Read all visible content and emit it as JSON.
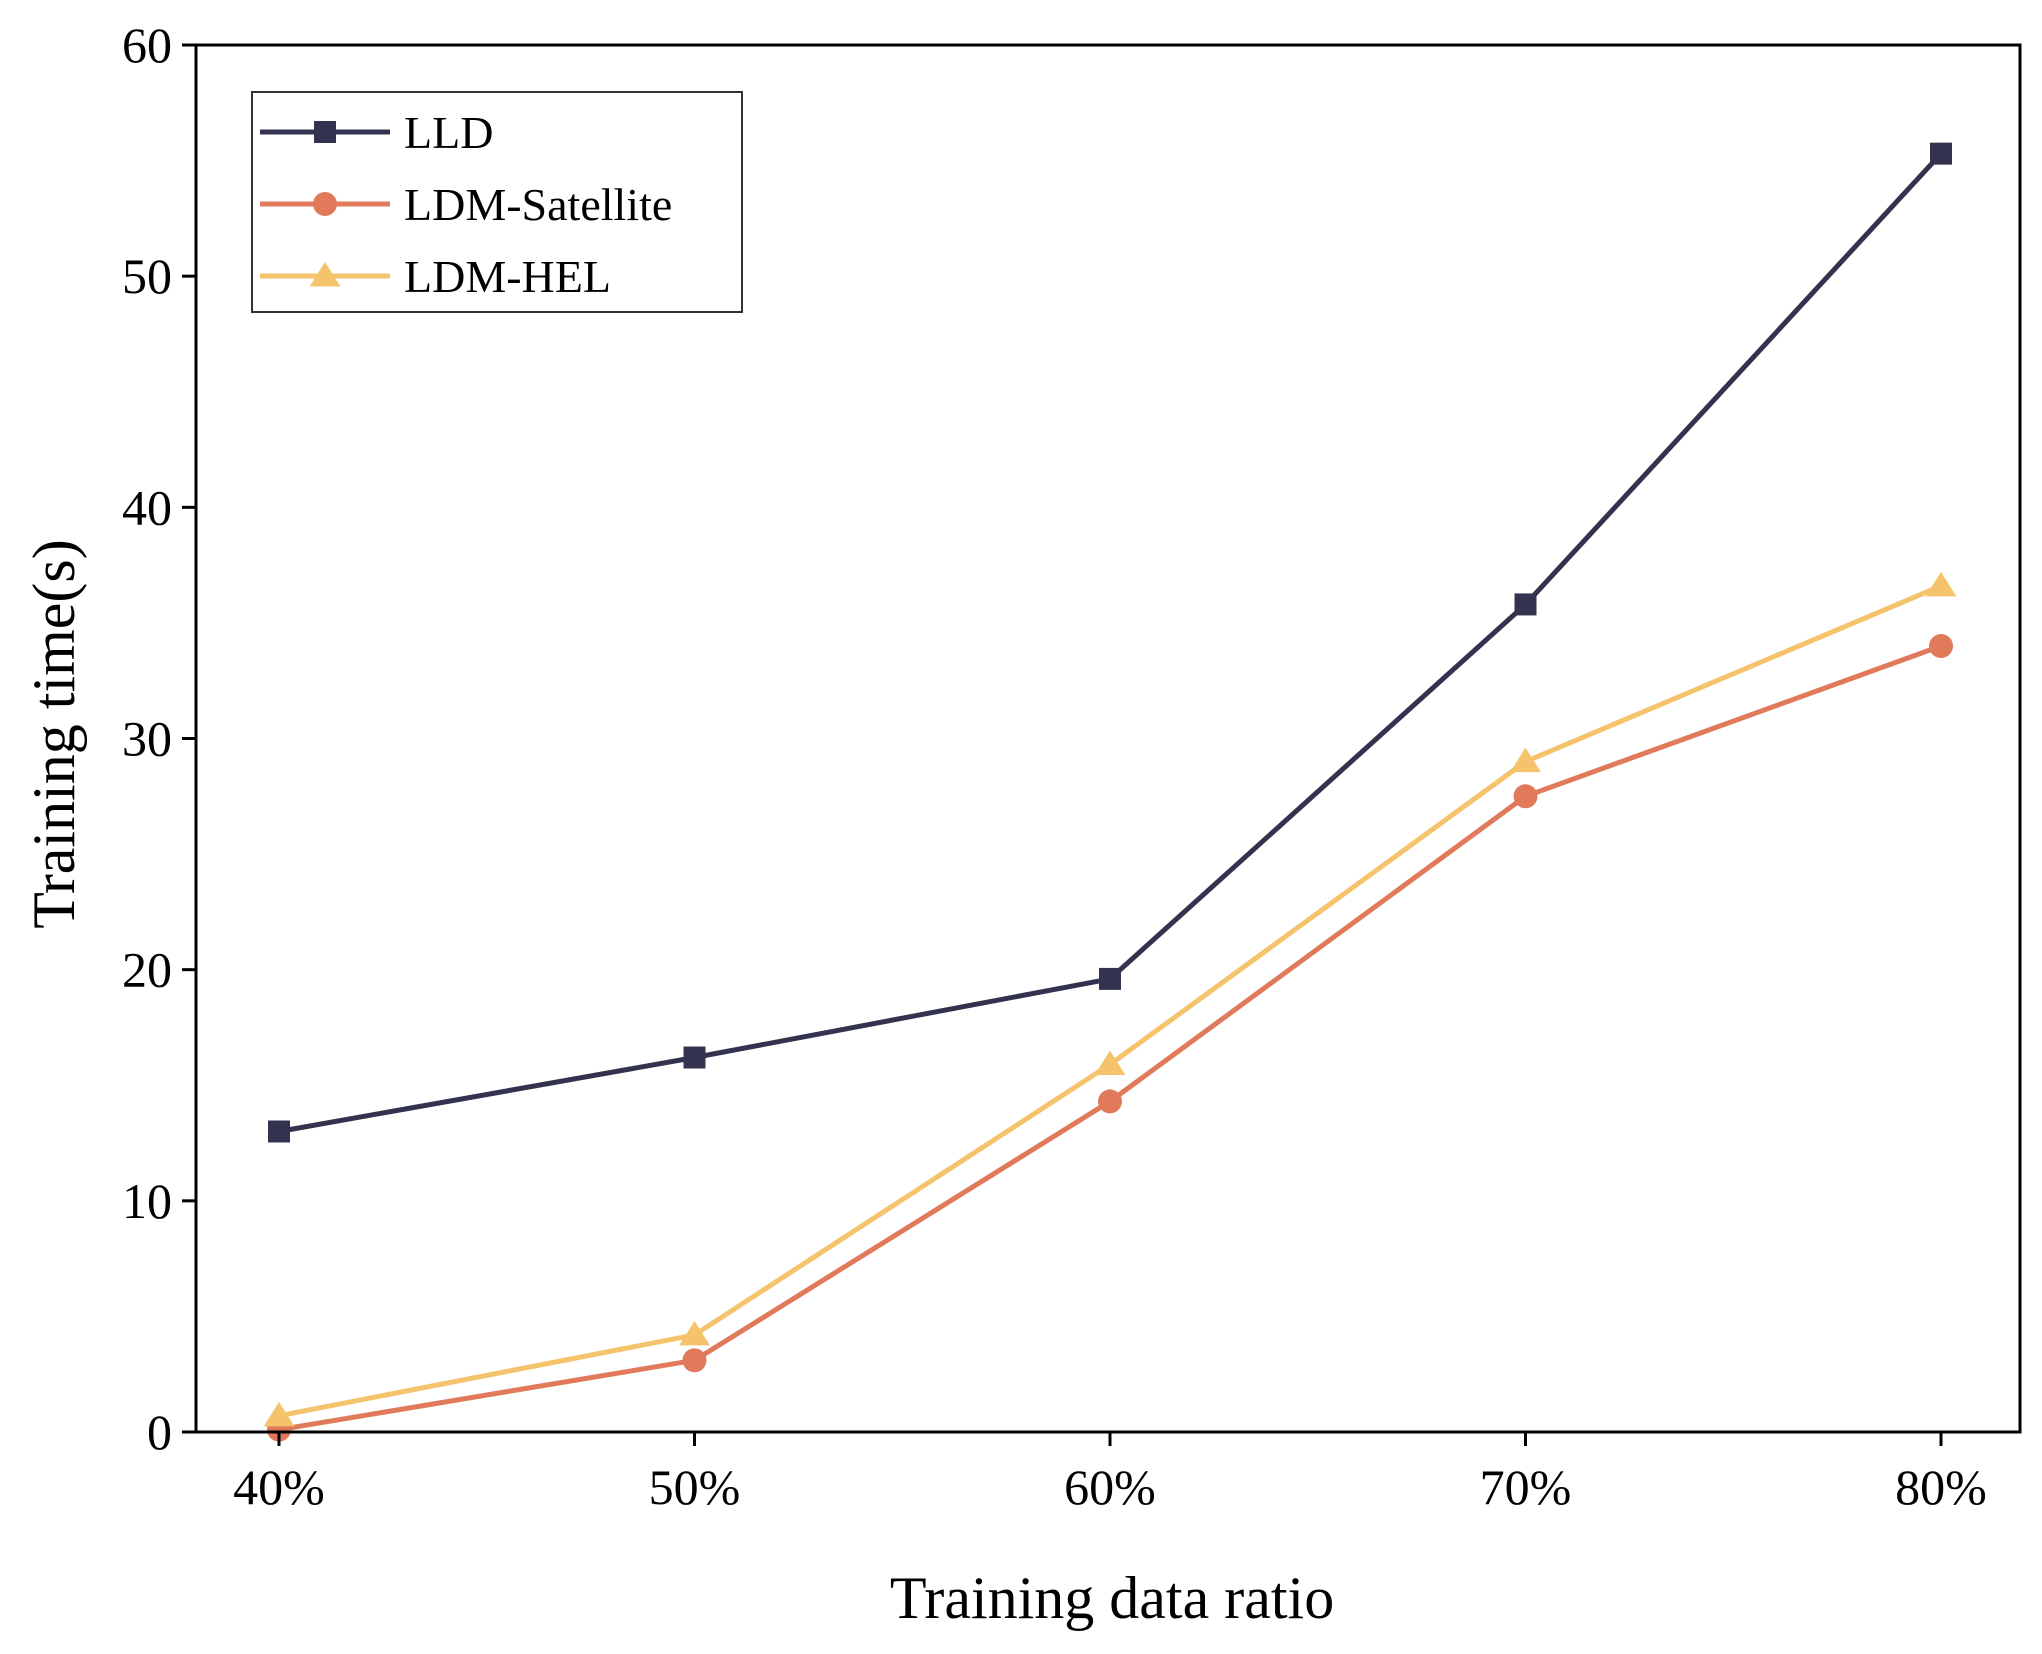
{
  "chart_data": {
    "type": "line",
    "xlabel": "Training data ratio",
    "ylabel": "Training time(s)",
    "categories": [
      "40%",
      "50%",
      "60%",
      "70%",
      "80%"
    ],
    "ylim": [
      0,
      60
    ],
    "yticks": [
      0,
      10,
      20,
      30,
      40,
      50,
      60
    ],
    "grid": false,
    "legend_position": "top-left",
    "series": [
      {
        "name": "LLD",
        "marker": "square",
        "color": "#33334f",
        "values": [
          13.0,
          16.2,
          19.6,
          35.8,
          55.3
        ]
      },
      {
        "name": "LDM-Satellite",
        "marker": "circle",
        "color": "#e07a5a",
        "values": [
          0.1,
          3.1,
          14.3,
          27.5,
          34.0
        ]
      },
      {
        "name": "LDM-HEL",
        "marker": "triangle",
        "color": "#f5c36b",
        "values": [
          0.7,
          4.2,
          15.9,
          29.0,
          36.6
        ]
      }
    ]
  }
}
